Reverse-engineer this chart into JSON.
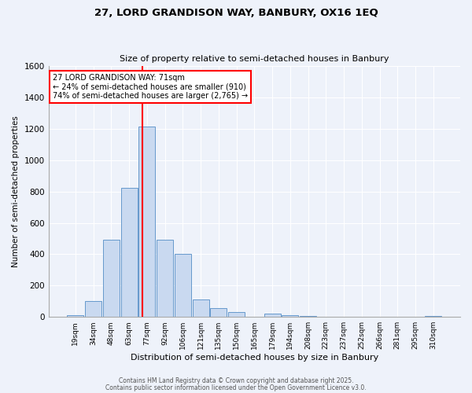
{
  "title": "27, LORD GRANDISON WAY, BANBURY, OX16 1EQ",
  "subtitle": "Size of property relative to semi-detached houses in Banbury",
  "xlabel": "Distribution of semi-detached houses by size in Banbury",
  "ylabel": "Number of semi-detached properties",
  "bar_color": "#c9d9f0",
  "bar_edge_color": "#6699cc",
  "background_color": "#eef2fa",
  "grid_color": "#ffffff",
  "categories": [
    "19sqm",
    "34sqm",
    "48sqm",
    "63sqm",
    "77sqm",
    "92sqm",
    "106sqm",
    "121sqm",
    "135sqm",
    "150sqm",
    "165sqm",
    "179sqm",
    "194sqm",
    "208sqm",
    "223sqm",
    "237sqm",
    "252sqm",
    "266sqm",
    "281sqm",
    "295sqm",
    "310sqm"
  ],
  "values": [
    10,
    100,
    490,
    825,
    1215,
    490,
    400,
    110,
    55,
    30,
    0,
    20,
    10,
    5,
    0,
    0,
    0,
    0,
    0,
    0,
    5
  ],
  "ylim": [
    0,
    1600
  ],
  "yticks": [
    0,
    200,
    400,
    600,
    800,
    1000,
    1200,
    1400,
    1600
  ],
  "property_label": "27 LORD GRANDISON WAY: 71sqm",
  "pct_smaller": 24,
  "pct_larger": 74,
  "n_smaller": 910,
  "n_larger": 2765,
  "vline_x_index": 3.73,
  "footer_line1": "Contains HM Land Registry data © Crown copyright and database right 2025.",
  "footer_line2": "Contains public sector information licensed under the Open Government Licence v3.0."
}
